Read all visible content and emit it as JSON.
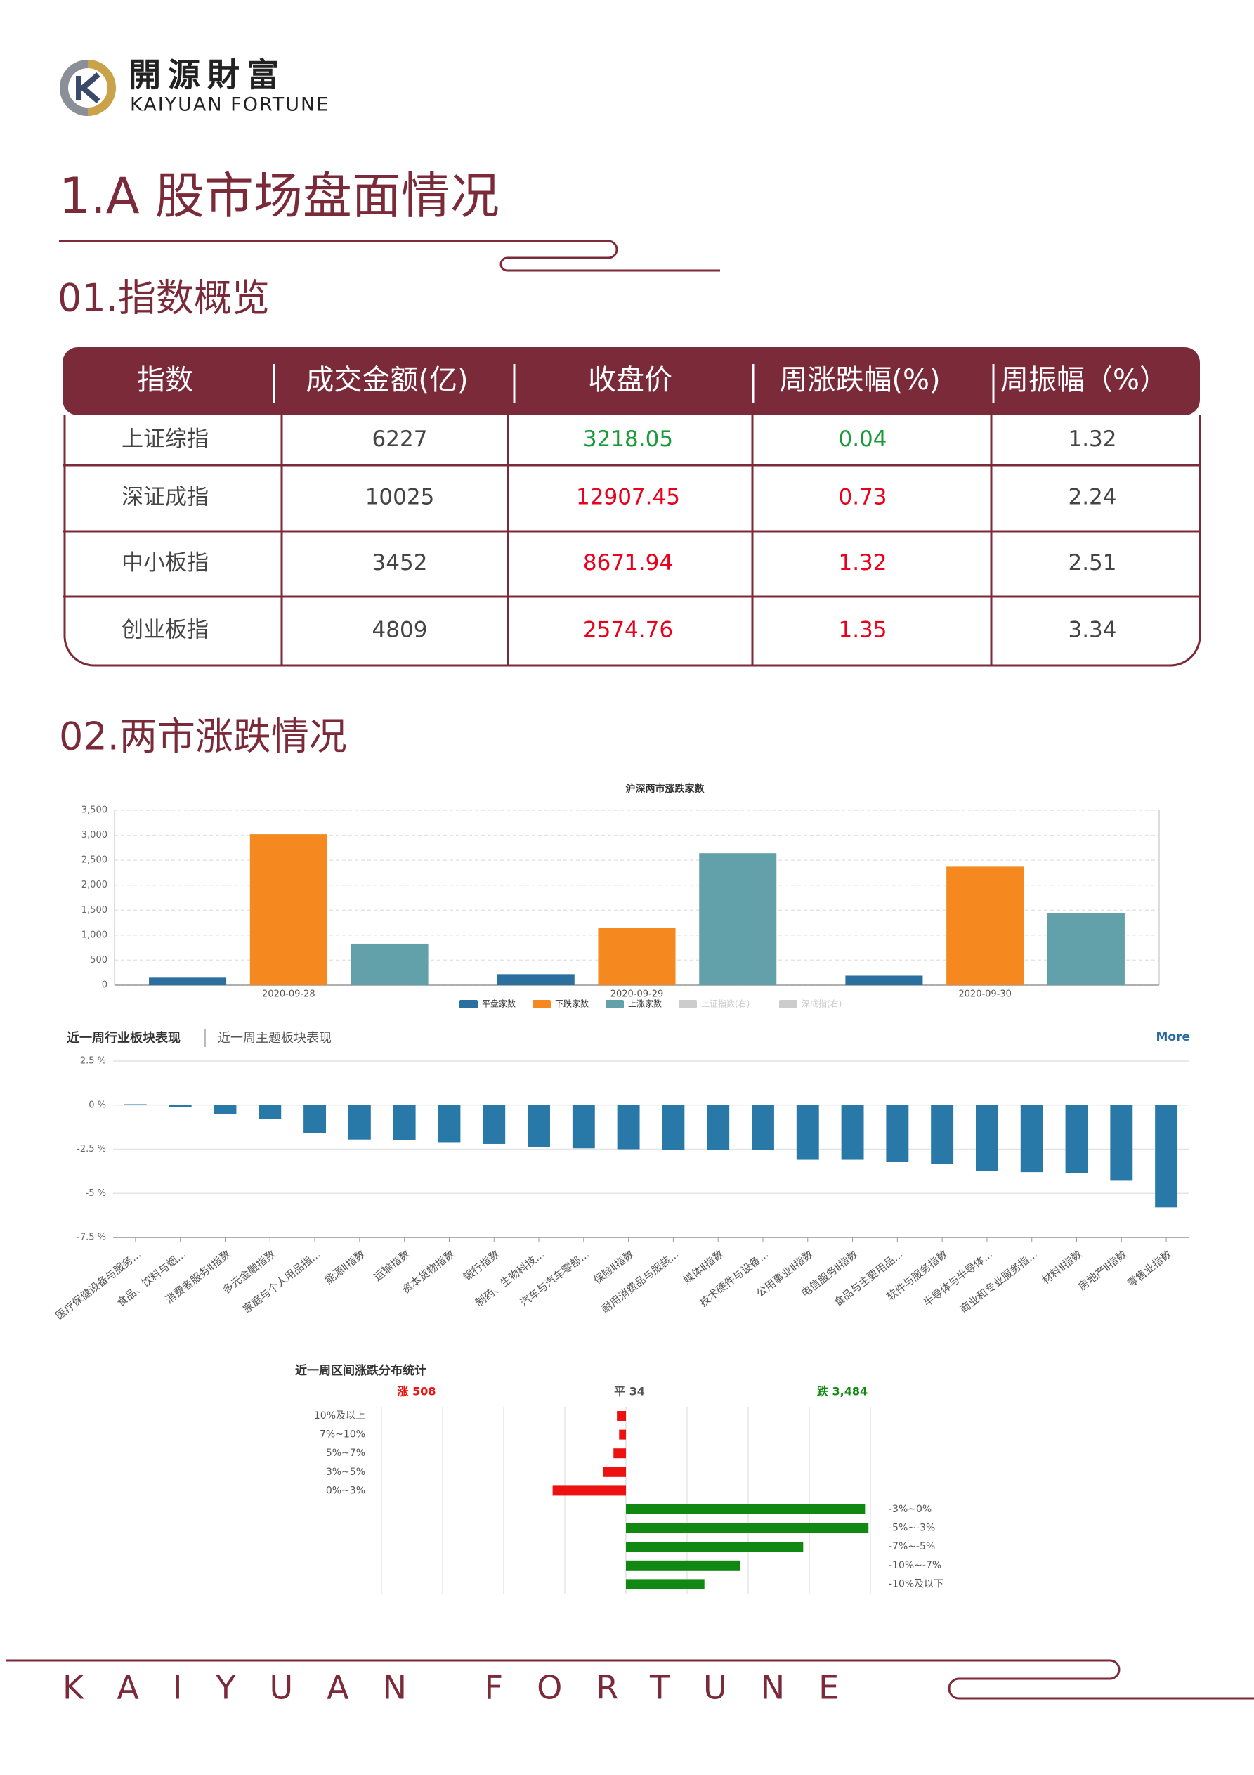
{
  "header": {
    "brand_cn": "開源財富",
    "brand_en": "KAIYUAN FORTUNE"
  },
  "section_title": "1.A 股市场盘面情况",
  "subsections": [
    "01.指数概览",
    "02.两市涨跌情况"
  ],
  "table": {
    "header": [
      "指数",
      "成交金额(亿)",
      "收盘价",
      "周涨跌幅(%)",
      "周振幅（%）"
    ],
    "rows": [
      [
        "上证综指",
        "6227",
        "3218.05",
        "0.04",
        "1.32"
      ],
      [
        "深证成指",
        "10025",
        "12907.45",
        "0.73",
        "2.24"
      ],
      [
        "中小板指",
        "3452",
        "8671.94",
        "1.32",
        "2.51"
      ],
      [
        "创业板指",
        "4809",
        "2574.76",
        "1.35",
        "3.34"
      ]
    ],
    "change_colors": [
      "#1a9a3a",
      "#e8001c",
      "#e8001c",
      "#e8001c"
    ]
  },
  "chart_data": [
    {
      "type": "bar",
      "title": "沪深两市涨跌家数",
      "categories": [
        "2020-09-28",
        "2020-09-29",
        "2020-09-30"
      ],
      "series": [
        {
          "name": "平盘家数",
          "color": "#2a6f9e",
          "values": [
            150,
            220,
            190
          ]
        },
        {
          "name": "下跌家数",
          "color": "#f5891f",
          "values": [
            3020,
            1140,
            2370
          ]
        },
        {
          "name": "上涨家数",
          "color": "#62a0aa",
          "values": [
            830,
            2640,
            1440
          ]
        },
        {
          "name": "上证指数(右)",
          "color": "#cccccc",
          "visible": false,
          "values": [
            null,
            null,
            null
          ]
        },
        {
          "name": "深成指(右)",
          "color": "#cccccc",
          "visible": false,
          "values": [
            null,
            null,
            null
          ]
        }
      ],
      "ylim": [
        0,
        3500
      ],
      "yticks": [
        0,
        500,
        {
          "value": 1000,
          "label": "1,000"
        },
        {
          "value": 1500,
          "label": "1,500"
        },
        {
          "value": 2000,
          "label": "2,000"
        },
        {
          "value": 2500,
          "label": "2,500"
        },
        {
          "value": 3000,
          "label": "3,000"
        },
        {
          "value": 3500,
          "label": "3,500"
        }
      ],
      "grid": true,
      "legend": "bottom"
    },
    {
      "type": "bar",
      "tabs": [
        "近一周行业板块表现",
        "近一周主题板块表现"
      ],
      "link": "More",
      "categories": [
        "医疗保健设备与服务...",
        "食品、饮料与烟...",
        "消费者服务Ⅱ指数",
        "多元金融指数",
        "家庭与个人用品指...",
        "能源Ⅱ指数",
        "运输指数",
        "资本货物指数",
        "银行指数",
        "制药、生物科技...",
        "汽车与汽车零部...",
        "保险Ⅱ指数",
        "耐用消费品与服装...",
        "媒体Ⅱ指数",
        "技术硬件与设备...",
        "公用事业Ⅱ指数",
        "电信服务Ⅱ指数",
        "食品与主要用品...",
        "软件与服务指数",
        "半导体与半导体...",
        "商业和专业服务指...",
        "材料Ⅱ指数",
        "房地产Ⅱ指数",
        "零售业指数"
      ],
      "values": [
        0.05,
        -0.1,
        -0.5,
        -0.8,
        -1.6,
        -1.95,
        -2.0,
        -2.1,
        -2.2,
        -2.4,
        -2.45,
        -2.5,
        -2.55,
        -2.55,
        -2.55,
        -3.1,
        -3.1,
        -3.2,
        -3.35,
        -3.75,
        -3.8,
        -3.85,
        -4.25,
        -5.8
      ],
      "color": "#2878a8",
      "ylim": [
        -7.5,
        2.5
      ],
      "yticks": [
        {
          "value": 2.5,
          "label": "2.5 %"
        },
        {
          "value": 0,
          "label": "0 %"
        },
        {
          "value": -2.5,
          "label": "-2.5 %"
        },
        {
          "value": -5,
          "label": "-5 %"
        },
        {
          "value": -7.5,
          "label": "-7.5 %"
        }
      ],
      "grid": true
    },
    {
      "type": "bar",
      "horizontal": true,
      "title": "近一周区间涨跌分布统计",
      "summary": [
        {
          "text": "涨 508",
          "color": "#ee1111"
        },
        {
          "text": "平 34",
          "color": "#555555"
        },
        {
          "text": "跌 3,484",
          "color": "#118811"
        }
      ],
      "series": [
        {
          "side": "left",
          "color": "#ee1111",
          "categories": [
            "10%及以上",
            "7%~10%",
            "5%~7%",
            "3%~5%",
            "0%~3%"
          ],
          "values": [
            37,
            28,
            51,
            92,
            300
          ]
        },
        {
          "side": "right",
          "color": "#118811",
          "categories": [
            "-3%~0%",
            "-5%~-3%",
            "-7%~-5%",
            "-10%~-7%",
            "-10%及以下"
          ],
          "values": [
            978,
            992,
            725,
            468,
            321
          ]
        }
      ],
      "xlim": [
        0,
        1000
      ],
      "xticks": [
        0,
        250,
        500,
        750,
        1000
      ],
      "grid": true
    }
  ],
  "footer": "KAIYUAN FORTUNE"
}
